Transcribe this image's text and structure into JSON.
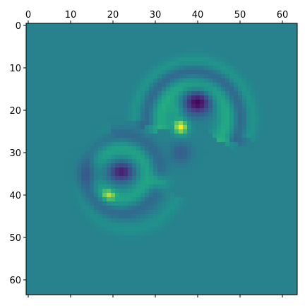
{
  "chart_data": {
    "type": "heatmap",
    "title": "",
    "xlabel": "",
    "ylabel": "",
    "colormap": "viridis",
    "background_value": 0.55,
    "grid_shape": [
      64,
      64
    ],
    "xlim": [
      -0.5,
      63.5
    ],
    "ylim": [
      63.5,
      -0.5
    ],
    "x_axis_position": "top",
    "x_ticks": [
      0,
      10,
      20,
      30,
      40,
      50,
      60
    ],
    "y_ticks": [
      0,
      10,
      20,
      30,
      40,
      50,
      60
    ],
    "x_tick_labels": [
      "0",
      "10",
      "20",
      "30",
      "40",
      "50",
      "60"
    ],
    "y_tick_labels": [
      "0",
      "10",
      "20",
      "30",
      "40",
      "50",
      "60"
    ],
    "features": [
      {
        "name": "dark-spot",
        "x": 40,
        "y": 18,
        "sx": 2.3,
        "sy": 2.0,
        "amp": -0.55
      },
      {
        "name": "bright-spot",
        "x": 36,
        "y": 24,
        "sx": 1.3,
        "sy": 1.3,
        "amp": 0.45
      },
      {
        "name": "dark-spot",
        "x": 22,
        "y": 34.5,
        "sx": 2.0,
        "sy": 1.6,
        "amp": -0.45
      },
      {
        "name": "dark-spot",
        "x": 15,
        "y": 35,
        "sx": 2.0,
        "sy": 2.2,
        "amp": -0.22
      },
      {
        "name": "bright-spot",
        "x": 31,
        "y": 37,
        "sx": 1.5,
        "sy": 1.3,
        "amp": 0.25
      },
      {
        "name": "bright-spot",
        "x": 19,
        "y": 40,
        "sx": 1.2,
        "sy": 1.0,
        "amp": 0.22
      },
      {
        "name": "dark-spot",
        "x": 36,
        "y": 30,
        "sx": 1.8,
        "sy": 1.8,
        "amp": -0.18
      },
      {
        "name": "bright-spot",
        "x": 35,
        "y": 20,
        "sx": 1.2,
        "sy": 1.5,
        "amp": 0.15
      }
    ],
    "rings": [
      {
        "cx": 39,
        "cy": 22,
        "r": 8,
        "width": 1.8,
        "amp": 0.22,
        "start_deg": 160,
        "end_deg": 400
      },
      {
        "cx": 39,
        "cy": 22,
        "r": 11,
        "width": 1.4,
        "amp": -0.18,
        "start_deg": 170,
        "end_deg": 390
      },
      {
        "cx": 39,
        "cy": 22,
        "r": 13.5,
        "width": 1.2,
        "amp": 0.12,
        "start_deg": 180,
        "end_deg": 380
      },
      {
        "cx": 22,
        "cy": 35,
        "r": 6,
        "width": 1.6,
        "amp": 0.18,
        "start_deg": 0,
        "end_deg": 360
      },
      {
        "cx": 22,
        "cy": 35,
        "r": 9,
        "width": 1.4,
        "amp": -0.14,
        "start_deg": 0,
        "end_deg": 360
      },
      {
        "cx": 24,
        "cy": 36,
        "r": 12,
        "width": 1.2,
        "amp": 0.08,
        "start_deg": 20,
        "end_deg": 250
      }
    ]
  }
}
